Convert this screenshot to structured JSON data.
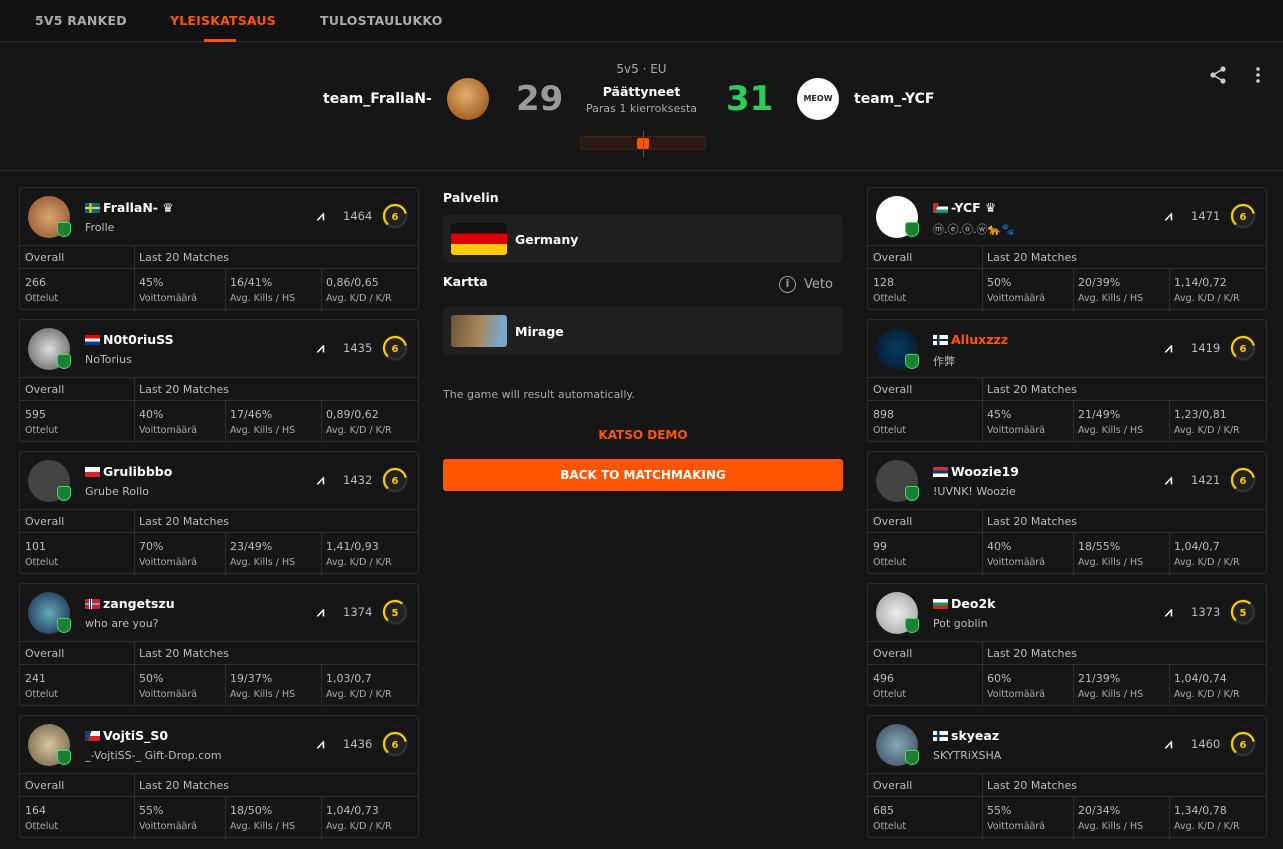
{
  "nav": {
    "tabs": [
      {
        "label": "5V5 RANKED"
      },
      {
        "label": "YLEISKATSAUS",
        "active": true
      },
      {
        "label": "TULOSTAULUKKO"
      }
    ]
  },
  "match": {
    "mode": "5v5 · EU",
    "status": "Päättyneet",
    "format": "Paras 1 kierroksesta",
    "team1": {
      "name": "team_FrallaN-",
      "score": "29"
    },
    "team2": {
      "name": "team_-YCF",
      "score": "31"
    },
    "score_color_winner": "#2ecc5a",
    "score_color_loser": "#999999"
  },
  "header_icons": [
    "share-icon",
    "more-vertical-icon"
  ],
  "middle": {
    "server_label": "Palvelin",
    "server": "Germany",
    "map_label": "Kartta",
    "veto_label": "Veto",
    "map": "Mirage",
    "auto_result": "The game will result automatically.",
    "watch_demo": "KATSO DEMO",
    "back_button": "BACK TO MATCHMAKING"
  },
  "accent": "#ff5500",
  "stat_labels": {
    "overall": "Overall",
    "last20": "Last 20 Matches",
    "matches": "Ottelut",
    "winrate": "Voittomäärä",
    "kills_hs": "Avg. Kills / HS",
    "kd_kr": "Avg. K/D / K/R"
  },
  "team1_players": [
    {
      "name": "FrallaN-",
      "crown": true,
      "flag": "se",
      "nick": "Frolle",
      "elo": "1464",
      "level": "6",
      "matches": "266",
      "winrate": "45%",
      "kills_hs": "16/41%",
      "kd_kr": "0,86/0,65"
    },
    {
      "name": "N0t0riuSS",
      "flag": "hr",
      "nick": "NoTorius",
      "elo": "1435",
      "level": "6",
      "matches": "595",
      "winrate": "40%",
      "kills_hs": "17/46%",
      "kd_kr": "0,89/0,62"
    },
    {
      "name": "Grulibbbo",
      "flag": "pl",
      "nick": "Grube Rollo",
      "elo": "1432",
      "level": "6",
      "matches": "101",
      "winrate": "70%",
      "kills_hs": "23/49%",
      "kd_kr": "1,41/0,93"
    },
    {
      "name": "zangetszu",
      "flag": "no",
      "nick": "who are you?",
      "elo": "1374",
      "level": "5",
      "matches": "241",
      "winrate": "50%",
      "kills_hs": "19/37%",
      "kd_kr": "1,03/0,7"
    },
    {
      "name": "VojtiS_S0",
      "flag": "cz",
      "nick": "_-VojtiSS-_ Gift-Drop.com",
      "elo": "1436",
      "level": "6",
      "matches": "164",
      "winrate": "55%",
      "kills_hs": "18/50%",
      "kd_kr": "1,04/0,73"
    }
  ],
  "team2_players": [
    {
      "name": "-YCF",
      "crown": true,
      "flag": "ps",
      "nick": "ⓜ.ⓔ.ⓞ.ⓦ🐆🐾",
      "elo": "1471",
      "level": "6",
      "matches": "128",
      "winrate": "50%",
      "kills_hs": "20/39%",
      "kd_kr": "1,14/0,72"
    },
    {
      "name": "Alluxzzz",
      "highlight": true,
      "flag": "fi",
      "nick": "作弊",
      "elo": "1419",
      "level": "6",
      "matches": "898",
      "winrate": "45%",
      "kills_hs": "21/49%",
      "kd_kr": "1,23/0,81"
    },
    {
      "name": "Woozie19",
      "flag": "rs",
      "nick": "!UVNK! Woozie",
      "elo": "1421",
      "level": "6",
      "matches": "99",
      "winrate": "40%",
      "kills_hs": "18/55%",
      "kd_kr": "1,04/0,7"
    },
    {
      "name": "Deo2k",
      "flag": "bg",
      "nick": "Pot goblin",
      "elo": "1373",
      "level": "5",
      "matches": "496",
      "winrate": "60%",
      "kills_hs": "21/39%",
      "kd_kr": "1,04/0,74"
    },
    {
      "name": "skyeaz",
      "flag": "fi",
      "nick": "SKYTRiXSHA",
      "elo": "1460",
      "level": "6",
      "matches": "685",
      "winrate": "55%",
      "kills_hs": "20/34%",
      "kd_kr": "1,34/0,78"
    }
  ]
}
